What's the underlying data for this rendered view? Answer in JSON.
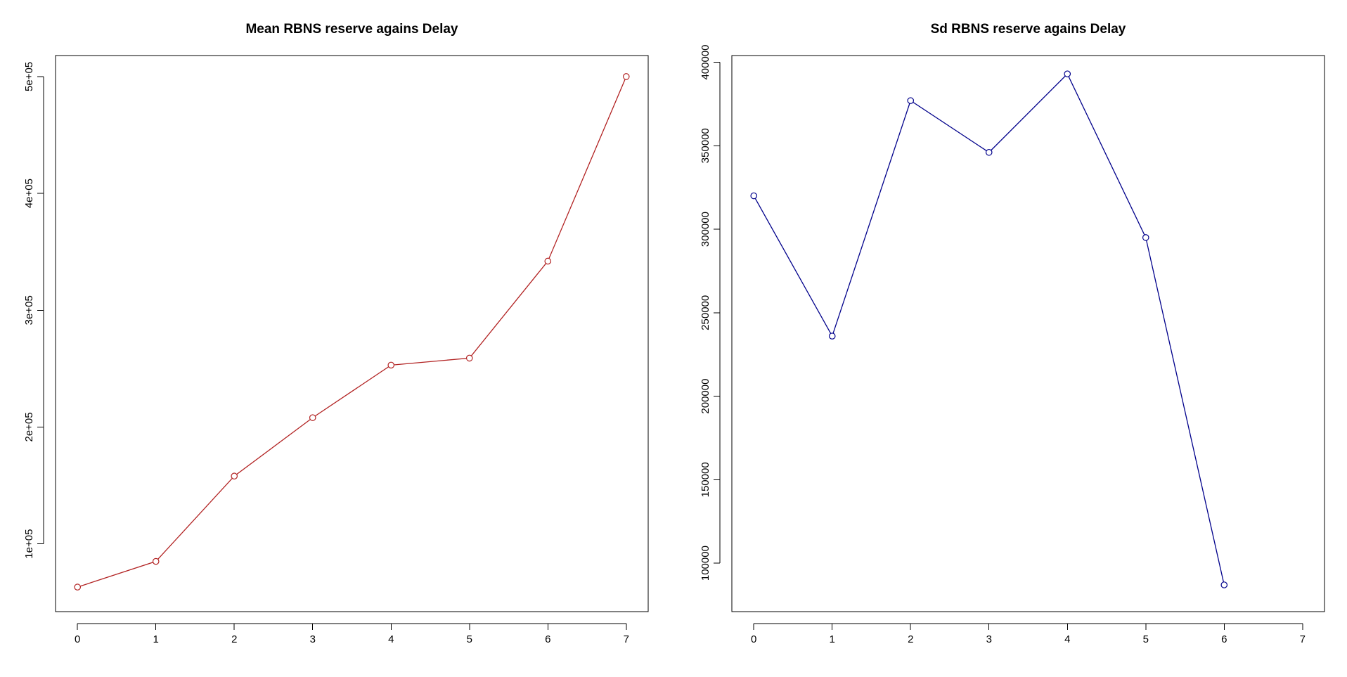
{
  "chart_data": [
    {
      "type": "line",
      "title": "Mean RBNS reserve agains Delay",
      "xlabel": "",
      "ylabel": "",
      "x": [
        0,
        1,
        2,
        3,
        4,
        5,
        6,
        7
      ],
      "xlim": [
        -0.28,
        7.28
      ],
      "ylim": [
        42000,
        518000
      ],
      "x_ticks": [
        0,
        1,
        2,
        3,
        4,
        5,
        6,
        7
      ],
      "y_ticks": [
        100000,
        200000,
        300000,
        400000,
        500000
      ],
      "y_tick_labels": [
        "1e+05",
        "2e+05",
        "3e+05",
        "4e+05",
        "5e+05"
      ],
      "y_tick_labels_rotated": true,
      "grid": false,
      "legend": "none",
      "marker": "open-circle",
      "series": [
        {
          "color": "#b22222",
          "values": [
            63000,
            85000,
            158000,
            208000,
            253000,
            259000,
            342000,
            500000
          ]
        }
      ]
    },
    {
      "type": "line",
      "title": "Sd RBNS reserve agains Delay",
      "xlabel": "",
      "ylabel": "",
      "x": [
        0,
        1,
        2,
        3,
        4,
        5,
        6
      ],
      "xlim": [
        -0.28,
        7.28
      ],
      "ylim": [
        71000,
        404000
      ],
      "x_ticks": [
        0,
        1,
        2,
        3,
        4,
        5,
        6,
        7
      ],
      "y_ticks": [
        100000,
        150000,
        200000,
        250000,
        300000,
        350000,
        400000
      ],
      "y_tick_labels": [
        "100000",
        "150000",
        "200000",
        "250000",
        "300000",
        "350000",
        "400000"
      ],
      "y_tick_labels_rotated": true,
      "grid": false,
      "legend": "none",
      "marker": "open-circle",
      "series": [
        {
          "color": "#00008b",
          "values": [
            320000,
            236000,
            377000,
            346000,
            393000,
            295000,
            87000
          ]
        }
      ]
    }
  ]
}
